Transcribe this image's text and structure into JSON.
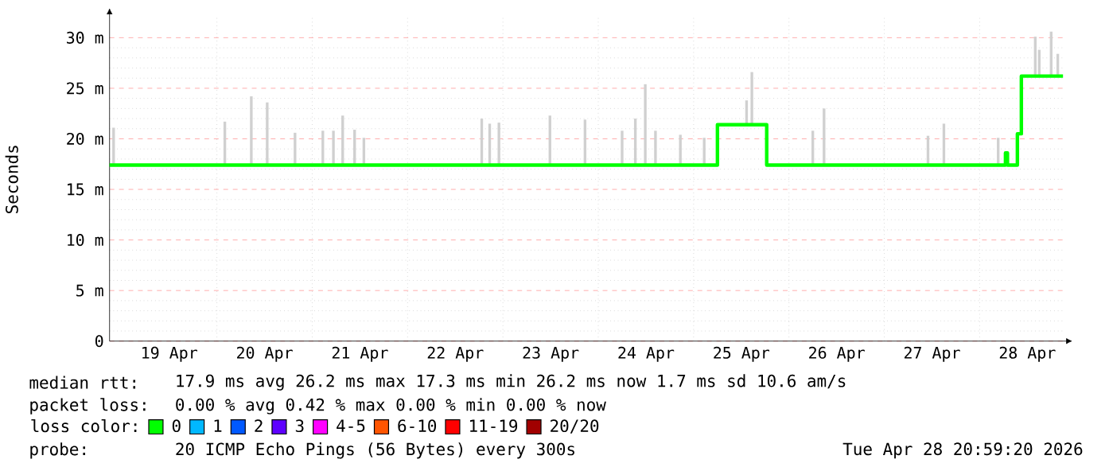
{
  "chart_data": {
    "type": "step",
    "ylabel": "Seconds",
    "xlim": [
      "2026-04-18T20:59",
      "2026-04-28T20:59"
    ],
    "xticks": [
      {
        "value": "2026-04-19T12:00",
        "label": "19 Apr"
      },
      {
        "value": "2026-04-20T12:00",
        "label": "20 Apr"
      },
      {
        "value": "2026-04-21T12:00",
        "label": "21 Apr"
      },
      {
        "value": "2026-04-22T12:00",
        "label": "22 Apr"
      },
      {
        "value": "2026-04-23T12:00",
        "label": "23 Apr"
      },
      {
        "value": "2026-04-24T12:00",
        "label": "24 Apr"
      },
      {
        "value": "2026-04-25T12:00",
        "label": "25 Apr"
      },
      {
        "value": "2026-04-26T12:00",
        "label": "26 Apr"
      },
      {
        "value": "2026-04-27T12:00",
        "label": "27 Apr"
      },
      {
        "value": "2026-04-28T12:00",
        "label": "28 Apr"
      }
    ],
    "ylim": [
      0,
      32
    ],
    "yticks": [
      0,
      {
        "value": 5,
        "label": "5 m"
      },
      {
        "value": 10,
        "label": "10 m"
      },
      {
        "value": 15,
        "label": "15 m"
      },
      {
        "value": 20,
        "label": "20 m"
      },
      {
        "value": 25,
        "label": "25 m"
      },
      {
        "value": 30,
        "label": "30 m"
      }
    ],
    "grid": true,
    "legend": "bottom",
    "legend_title": "loss color:",
    "series": [
      {
        "type": "bar",
        "color": "#d0d0d0",
        "x": [
          "2026-04-18T22:00",
          "2026-04-20T02:00",
          "2026-04-20T08:40",
          "2026-04-20T12:40",
          "2026-04-20T19:40",
          "2026-04-21T02:40",
          "2026-04-21T05:20",
          "2026-04-21T07:40",
          "2026-04-21T10:40",
          "2026-04-21T13:00",
          "2026-04-22T18:40",
          "2026-04-22T20:40",
          "2026-04-22T23:00",
          "2026-04-23T11:50",
          "2026-04-23T20:40",
          "2026-04-24T06:00",
          "2026-04-24T09:20",
          "2026-04-24T11:50",
          "2026-04-24T14:24",
          "2026-04-24T20:40",
          "2026-04-25T02:40",
          "2026-04-25T13:20",
          "2026-04-25T14:40",
          "2026-04-26T06:00",
          "2026-04-26T08:50",
          "2026-04-27T11:00",
          "2026-04-27T15:00",
          "2026-04-28T04:40",
          "2026-04-28T14:00",
          "2026-04-28T15:00",
          "2026-04-28T18:00",
          "2026-04-28T19:40"
        ],
        "base": [
          17.3,
          17.3,
          17.3,
          17.3,
          17.3,
          17.3,
          17.3,
          17.3,
          17.3,
          17.3,
          17.3,
          17.3,
          17.3,
          17.3,
          17.3,
          17.3,
          17.3,
          17.3,
          17.3,
          17.3,
          17.3,
          21.4,
          21.4,
          17.3,
          17.3,
          17.3,
          17.3,
          17.3,
          26.2,
          26.2,
          26.2,
          26.2
        ],
        "values": [
          3.8,
          4.4,
          6.9,
          6.3,
          3.3,
          3.5,
          3.5,
          5.0,
          3.6,
          2.8,
          4.7,
          4.2,
          4.3,
          5.0,
          4.6,
          3.5,
          4.7,
          8.1,
          3.5,
          3.1,
          2.8,
          2.4,
          5.2,
          3.5,
          5.7,
          3.0,
          4.2,
          2.8,
          3.9,
          2.6,
          4.4,
          2.2
        ]
      },
      {
        "name": "0",
        "color": "#00ff00",
        "x": [
          "2026-04-18T20:59",
          "2026-04-25T06:00",
          "2026-04-25T18:24",
          "2026-04-28T06:30",
          "2026-04-28T07:00",
          "2026-04-28T09:30",
          "2026-04-28T10:30",
          "2026-04-28T20:59"
        ],
        "values": [
          17.4,
          21.4,
          17.4,
          18.6,
          17.4,
          20.5,
          26.2,
          26.2
        ]
      },
      {
        "name": "1",
        "color": "#00b8ff"
      },
      {
        "name": "2",
        "color": "#0059ff"
      },
      {
        "name": "3",
        "color": "#5e00ff"
      },
      {
        "name": "4-5",
        "color": "#ff00ff"
      },
      {
        "name": "6-10",
        "color": "#ff5500"
      },
      {
        "name": "11-19",
        "color": "#ff0000"
      },
      {
        "name": "20/20",
        "color": "#a10000"
      }
    ],
    "annotations": [
      "median rtt:",
      "17.9 ms avg  26.2 ms max  17.3 ms min  26.2 ms now  1.7 ms sd  10.6   am/s",
      "packet loss:",
      "0.00 % avg  0.42 % max  0.00 % min  0.00 % now",
      "probe:",
      "20 ICMP Echo Pings (56 Bytes) every 300s",
      "Tue Apr 28 20:59:20 2026"
    ]
  }
}
